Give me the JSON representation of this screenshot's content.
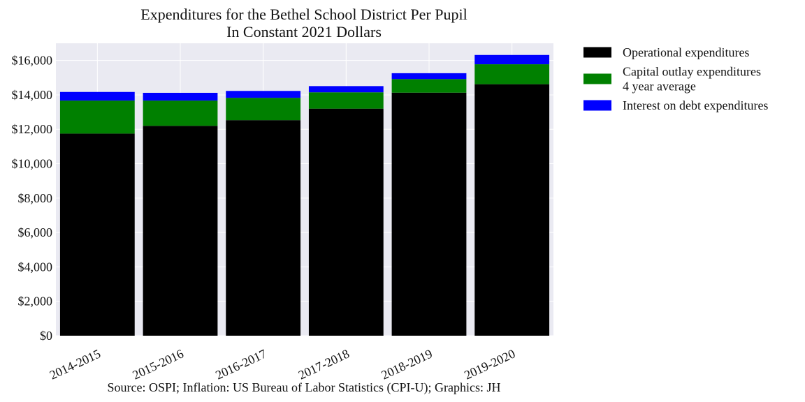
{
  "chart_data": {
    "type": "bar",
    "stacked": true,
    "title": [
      "Expenditures for the Bethel School District Per Pupil",
      "In Constant 2021 Dollars"
    ],
    "xlabel": "",
    "ylabel": "",
    "categories": [
      "2014-2015",
      "2015-2016",
      "2016-2017",
      "2017-2018",
      "2018-2019",
      "2019-2020"
    ],
    "series": [
      {
        "name": "Operational expenditures",
        "color": "#000000",
        "values": [
          11750,
          12200,
          12530,
          13200,
          14130,
          14620
        ]
      },
      {
        "name": "Capital outlay expenditures\n4 year average",
        "name_lines": [
          "Capital outlay expenditures",
          "4 year average"
        ],
        "color": "#008000",
        "values": [
          1920,
          1470,
          1300,
          950,
          790,
          1160
        ]
      },
      {
        "name": "Interest on debt expenditures",
        "color": "#0000ff",
        "values": [
          500,
          450,
          400,
          360,
          340,
          540
        ]
      }
    ],
    "ylim": [
      0,
      17000
    ],
    "yticks": [
      0,
      2000,
      4000,
      6000,
      8000,
      10000,
      12000,
      14000,
      16000
    ],
    "ytick_labels": [
      "$0",
      "$2,000",
      "$4,000",
      "$6,000",
      "$8,000",
      "$10,000",
      "$12,000",
      "$14,000",
      "$16,000"
    ],
    "grid": true,
    "legend_position": "outside-right-top",
    "background": "#eaeaf2",
    "source": "Source: OSPI; Inflation: US Bureau of Labor Statistics (CPI-U); Graphics: JH"
  }
}
